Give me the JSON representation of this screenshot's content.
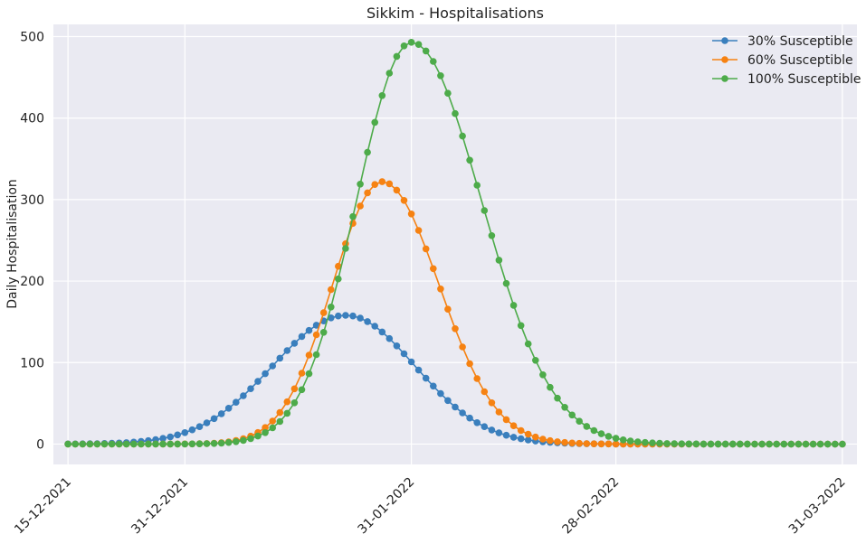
{
  "chart_data": {
    "type": "line",
    "title": "Sikkim - Hospitalisations",
    "xlabel": "",
    "ylabel": "Daily Hospitalisation",
    "x_start": "15-12-2021",
    "x_end": "31-03-2022",
    "xlim": [
      "2021-12-13",
      "2022-04-02"
    ],
    "ylim": [
      -25,
      515
    ],
    "x_ticks": [
      "15-12-2021",
      "31-12-2021",
      "31-01-2022",
      "28-02-2022",
      "31-03-2022"
    ],
    "y_ticks": [
      0,
      100,
      200,
      300,
      400,
      500
    ],
    "grid": true,
    "legend_position": "top-right",
    "series": [
      {
        "name": "30% Susceptible",
        "color": "#3a7fbd",
        "peak_date": "2022-01-22",
        "peak_value": 158,
        "sigma_left_days": 10,
        "sigma_right_days": 9.5
      },
      {
        "name": "60% Susceptible",
        "color": "#f68212",
        "peak_date": "2022-01-27",
        "peak_value": 322,
        "sigma_left_days": 6.8,
        "sigma_right_days": 7.8
      },
      {
        "name": "100% Susceptible",
        "color": "#4dab4a",
        "peak_date": "2022-01-31",
        "peak_value": 493,
        "sigma_left_days": 7.5,
        "sigma_right_days": 9.6
      }
    ]
  }
}
